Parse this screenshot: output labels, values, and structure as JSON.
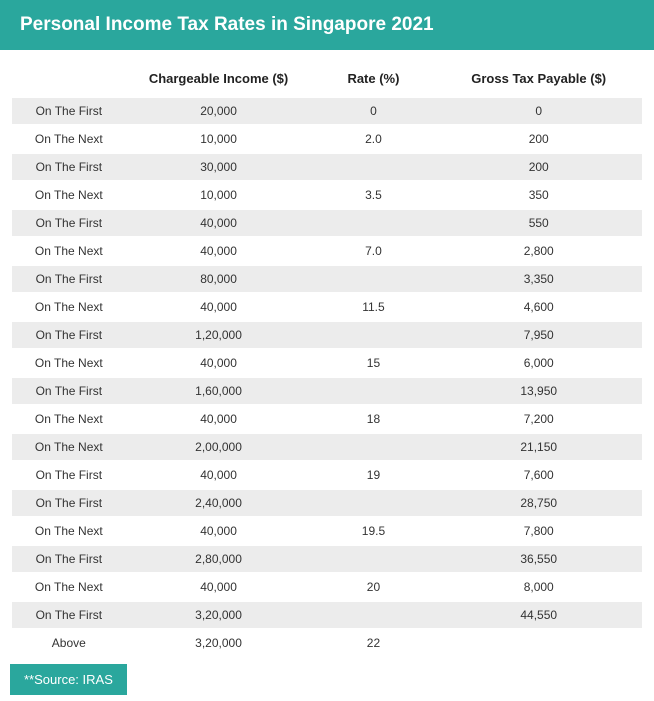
{
  "title": "Personal Income Tax Rates in Singapore 2021",
  "columns": {
    "label": "",
    "income": "Chargeable Income ($)",
    "rate": "Rate (%)",
    "tax": "Gross Tax Payable ($)"
  },
  "rows": [
    {
      "shaded": true,
      "label": "On The First",
      "income": "20,000",
      "rate": "0",
      "tax": "0"
    },
    {
      "shaded": false,
      "label": "On The Next",
      "income": "10,000",
      "rate": "2.0",
      "tax": "200"
    },
    {
      "shaded": true,
      "label": "On The First",
      "income": "30,000",
      "rate": "",
      "tax": "200"
    },
    {
      "shaded": false,
      "label": "On The Next",
      "income": "10,000",
      "rate": "3.5",
      "tax": "350"
    },
    {
      "shaded": true,
      "label": "On The First",
      "income": "40,000",
      "rate": "",
      "tax": "550"
    },
    {
      "shaded": false,
      "label": "On The Next",
      "income": "40,000",
      "rate": "7.0",
      "tax": "2,800"
    },
    {
      "shaded": true,
      "label": "On The First",
      "income": "80,000",
      "rate": "",
      "tax": "3,350"
    },
    {
      "shaded": false,
      "label": "On The Next",
      "income": "40,000",
      "rate": "11.5",
      "tax": "4,600"
    },
    {
      "shaded": true,
      "label": "On The First",
      "income": "1,20,000",
      "rate": "",
      "tax": "7,950"
    },
    {
      "shaded": false,
      "label": "On The Next",
      "income": "40,000",
      "rate": "15",
      "tax": "6,000"
    },
    {
      "shaded": true,
      "label": "On The First",
      "income": "1,60,000",
      "rate": "",
      "tax": "13,950"
    },
    {
      "shaded": false,
      "label": "On The Next",
      "income": "40,000",
      "rate": "18",
      "tax": "7,200"
    },
    {
      "shaded": true,
      "label": "On The Next",
      "income": "2,00,000",
      "rate": "",
      "tax": "21,150"
    },
    {
      "shaded": false,
      "label": "On The First",
      "income": "40,000",
      "rate": "19",
      "tax": "7,600"
    },
    {
      "shaded": true,
      "label": "On The First",
      "income": "2,40,000",
      "rate": "",
      "tax": "28,750"
    },
    {
      "shaded": false,
      "label": "On The Next",
      "income": "40,000",
      "rate": "19.5",
      "tax": "7,800"
    },
    {
      "shaded": true,
      "label": "On The First",
      "income": "2,80,000",
      "rate": "",
      "tax": "36,550"
    },
    {
      "shaded": false,
      "label": "On The Next",
      "income": "40,000",
      "rate": "20",
      "tax": "8,000"
    },
    {
      "shaded": true,
      "label": "On The First",
      "income": "3,20,000",
      "rate": "",
      "tax": "44,550"
    },
    {
      "shaded": false,
      "label": "Above",
      "income": "3,20,000",
      "rate": "22",
      "tax": ""
    }
  ],
  "source": "**Source: IRAS",
  "colors": {
    "accent": "#2aa79d",
    "shaded_row": "#ececec",
    "text": "#333333",
    "title_text": "#ffffff"
  }
}
